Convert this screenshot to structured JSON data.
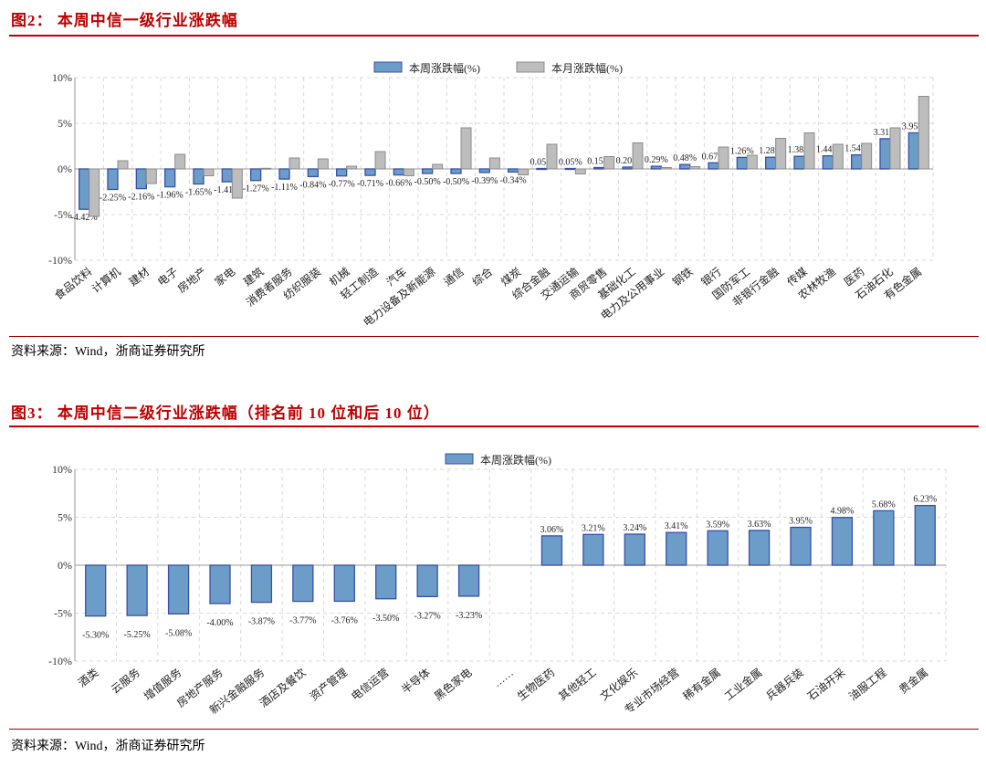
{
  "figure2": {
    "title": "图2：  本周中信一级行业涨跌幅",
    "source": "资料来源：Wind，浙商证券研究所"
  },
  "figure3": {
    "title": "图3：  本周中信二级行业涨跌幅（排名前 10 位和后 10 位）",
    "source": "资料来源：Wind，浙商证券研究所"
  },
  "colors": {
    "accent": "#c00000",
    "week_fill": "#6b9dc8",
    "week_border": "#3a4fa8",
    "month_fill": "#bdbdbd",
    "month_border": "#8c8c8c"
  },
  "chart_data": [
    {
      "type": "bar",
      "title": "本周中信一级行业涨跌幅",
      "ylim": [
        -10,
        10
      ],
      "yticks": [
        "10%",
        "5%",
        "0%",
        "-5%",
        "-10%"
      ],
      "ytick_values": [
        10,
        5,
        0,
        -5,
        -10
      ],
      "grid": true,
      "legend_position": "top-center",
      "categories": [
        "食品饮料",
        "计算机",
        "建材",
        "电子",
        "房地产",
        "家电",
        "建筑",
        "消费者服务",
        "纺织服装",
        "机械",
        "轻工制造",
        "汽车",
        "电力设备及新能源",
        "通信",
        "综合",
        "煤炭",
        "综合金融",
        "交通运输",
        "商贸零售",
        "基础化工",
        "电力及公用事业",
        "钢铁",
        "银行",
        "国防军工",
        "非银行金融",
        "传媒",
        "农林牧渔",
        "医药",
        "石油石化",
        "有色金属"
      ],
      "series": [
        {
          "name": "本周涨跌幅(%)",
          "labeled": true,
          "values": [
            -4.42,
            -2.25,
            -2.16,
            -1.96,
            -1.65,
            -1.41,
            -1.27,
            -1.11,
            -0.84,
            -0.77,
            -0.71,
            -0.66,
            -0.5,
            -0.5,
            -0.39,
            -0.34,
            0.05,
            0.05,
            0.15,
            0.2,
            0.29,
            0.48,
            0.67,
            1.26,
            1.28,
            1.38,
            1.44,
            1.54,
            3.31,
            3.95
          ]
        },
        {
          "name": "本月涨跌幅(%)",
          "labeled": false,
          "values": [
            -5.2,
            0.9,
            -1.6,
            1.6,
            -0.75,
            -3.2,
            0.07,
            1.2,
            1.1,
            0.3,
            1.9,
            -0.75,
            0.5,
            4.5,
            1.2,
            -0.65,
            2.7,
            -0.55,
            1.35,
            2.85,
            0.15,
            0.25,
            2.4,
            1.5,
            3.35,
            3.95,
            2.7,
            2.8,
            4.5,
            7.95
          ]
        }
      ]
    },
    {
      "type": "bar",
      "title": "本周中信二级行业涨跌幅（排名前 10 位和后 10 位）",
      "ylim": [
        -10,
        10
      ],
      "yticks": [
        "10%",
        "5%",
        "0%",
        "-5%",
        "-10%"
      ],
      "ytick_values": [
        10,
        5,
        0,
        -5,
        -10
      ],
      "grid": true,
      "legend_position": "top-center",
      "categories": [
        "酒类",
        "云服务",
        "增值服务",
        "房地产服务",
        "新兴金融服务",
        "酒店及餐饮",
        "资产管理",
        "电信运营",
        "半导体",
        "黑色家电",
        "……",
        "生物医药",
        "其他轻工",
        "文化娱乐",
        "专业市场经营",
        "稀有金属",
        "工业金属",
        "兵器兵装",
        "石油开采",
        "油服工程",
        "贵金属"
      ],
      "series": [
        {
          "name": "本周涨跌幅(%)",
          "labeled": true,
          "values": [
            -5.3,
            -5.25,
            -5.08,
            -4.0,
            -3.87,
            -3.77,
            -3.76,
            -3.5,
            -3.27,
            -3.23,
            null,
            3.06,
            3.21,
            3.24,
            3.41,
            3.59,
            3.63,
            3.95,
            4.98,
            5.68,
            6.23
          ]
        }
      ]
    }
  ]
}
